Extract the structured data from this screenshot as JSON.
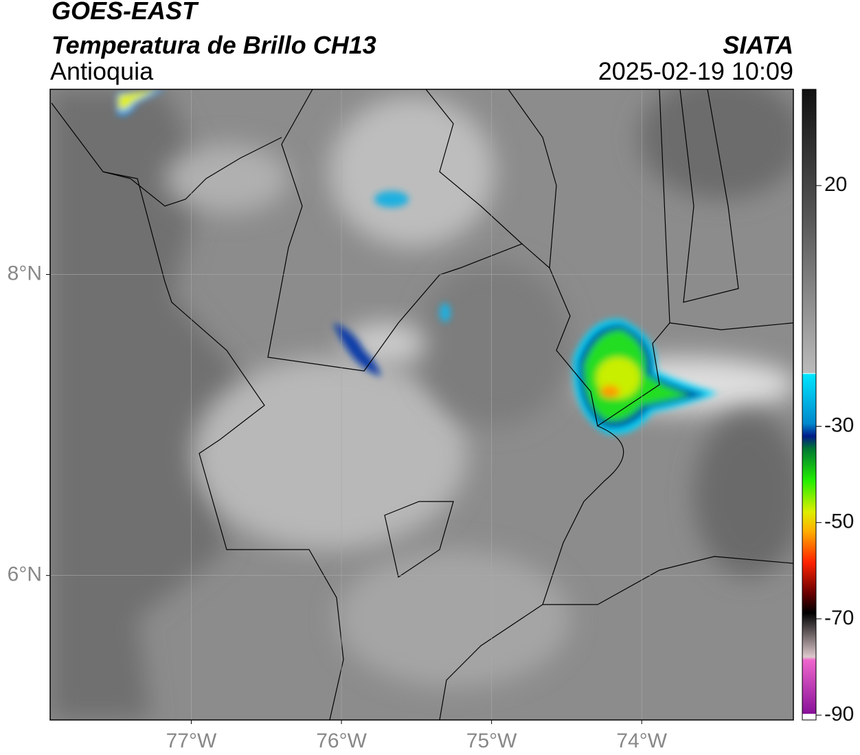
{
  "header": {
    "satellite": "GOES-EAST",
    "product": "Temperatura de Brillo CH13",
    "region": "Antioquia",
    "source": "SIATA",
    "datetime": "2025-02-19 10:09"
  },
  "map": {
    "xlim": [
      -77.94,
      -72.99
    ],
    "ylim": [
      5.04,
      9.23
    ],
    "xticks": [
      {
        "value": -77,
        "label": "77°W"
      },
      {
        "value": -76,
        "label": "76°W"
      },
      {
        "value": -75,
        "label": "75°W"
      },
      {
        "value": -74,
        "label": "74°W"
      }
    ],
    "yticks": [
      {
        "value": 8,
        "label": "8°N"
      },
      {
        "value": 6,
        "label": "6°N"
      }
    ],
    "grid": true
  },
  "colorbar": {
    "lim": [
      -91,
      40
    ],
    "ticks": [
      20,
      -30,
      -50,
      -70,
      -90
    ]
  }
}
